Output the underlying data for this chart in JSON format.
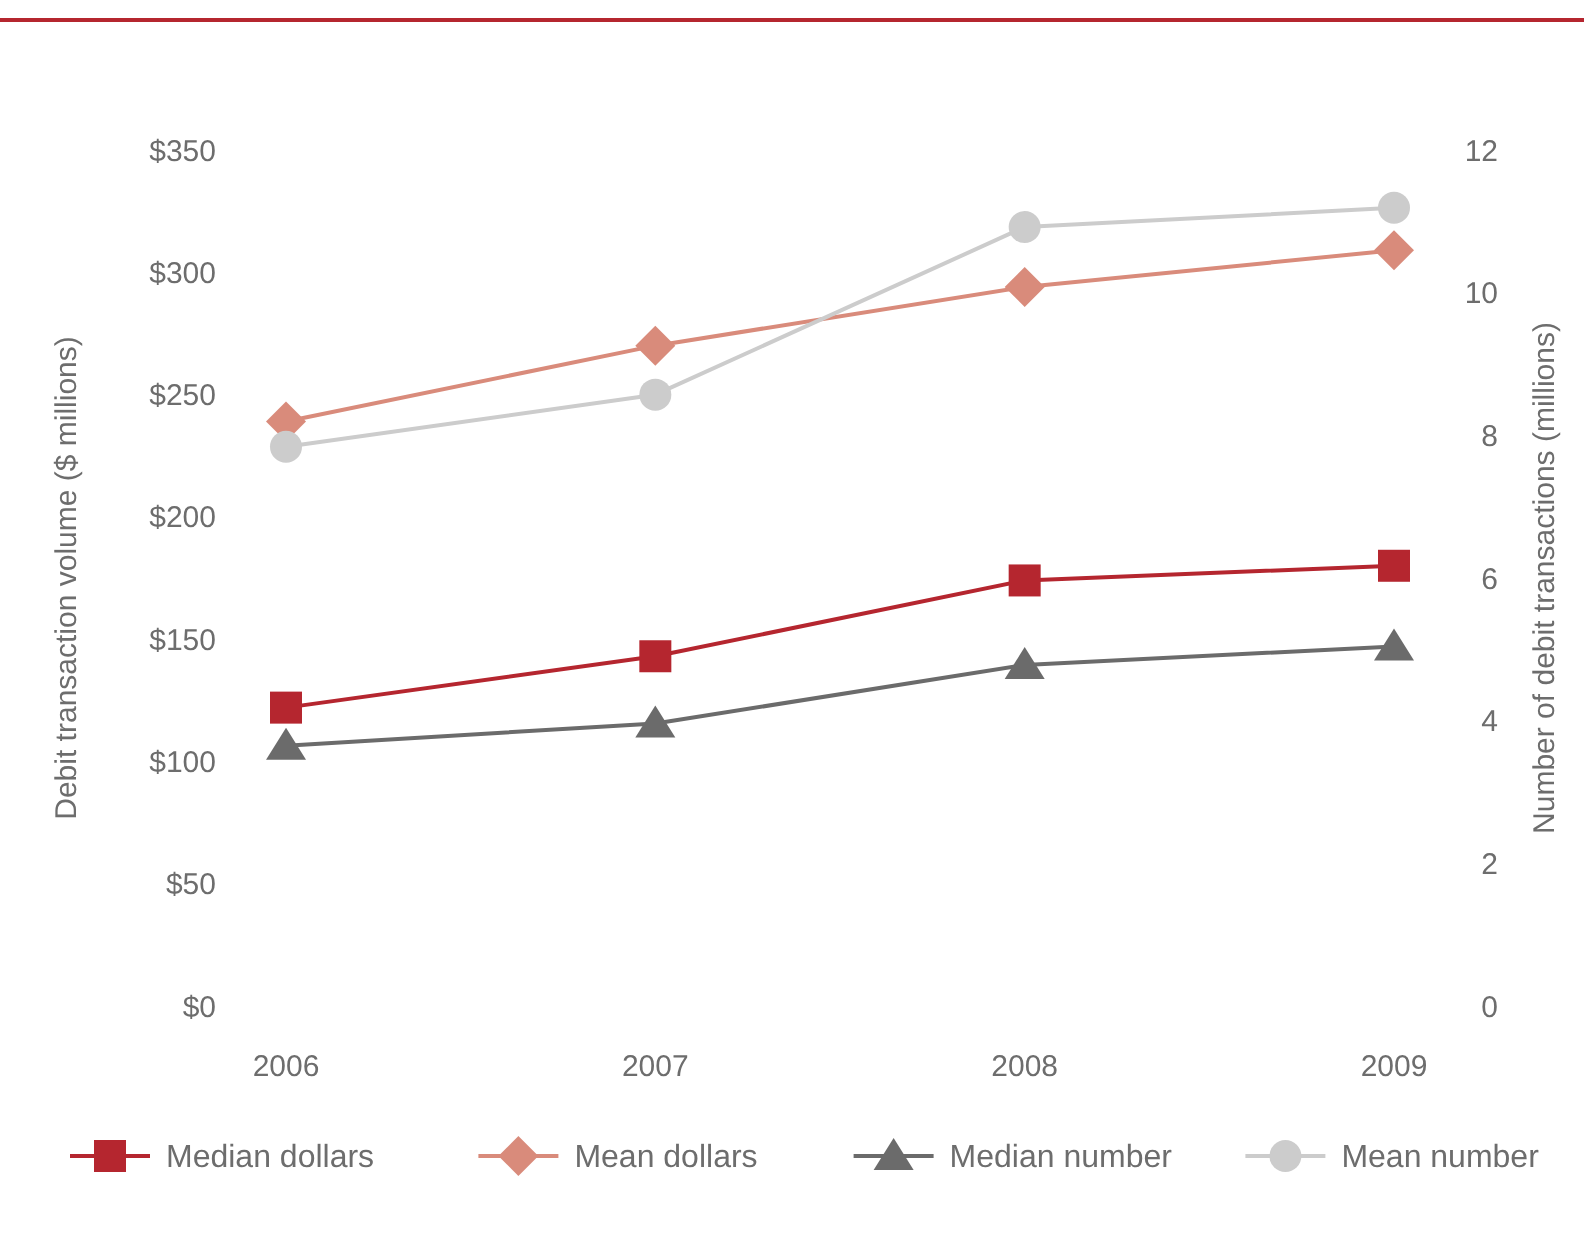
{
  "chart_data": {
    "type": "line",
    "categories": [
      "2006",
      "2007",
      "2008",
      "2009"
    ],
    "ylabel": "Debit transaction volume ($  millions)",
    "y2label": "Number of debit transactions (millions)",
    "ylim": [
      0,
      350
    ],
    "yticks": [
      {
        "value": 0,
        "label": "$0"
      },
      {
        "value": 50,
        "label": "$50"
      },
      {
        "value": 100,
        "label": "$100"
      },
      {
        "value": 150,
        "label": "$150"
      },
      {
        "value": 200,
        "label": "$200"
      },
      {
        "value": 250,
        "label": "$250"
      },
      {
        "value": 300,
        "label": "$300"
      },
      {
        "value": 350,
        "label": "$350"
      }
    ],
    "y2lim": [
      0,
      12
    ],
    "y2ticks": [
      0,
      2,
      4,
      6,
      8,
      10,
      12
    ],
    "series": [
      {
        "name": "Median dollars",
        "color": "#b5262f",
        "marker": "square",
        "values": [
          122,
          143,
          174,
          180
        ]
      },
      {
        "name": "Mean dollars",
        "color": "#d98b7b",
        "marker": "diamond",
        "values": [
          239,
          270,
          294,
          309
        ]
      },
      {
        "name": "Median number",
        "color": "#6b6b6b",
        "marker": "triangle",
        "axis": "y2",
        "values": [
          3.65,
          3.96,
          4.78,
          5.04
        ]
      },
      {
        "name": "Mean number",
        "color": "#cccccc",
        "marker": "circle",
        "axis": "y2",
        "values": [
          7.84,
          8.57,
          10.92,
          11.19
        ]
      }
    ],
    "legend": "bottom",
    "grid": false
  }
}
